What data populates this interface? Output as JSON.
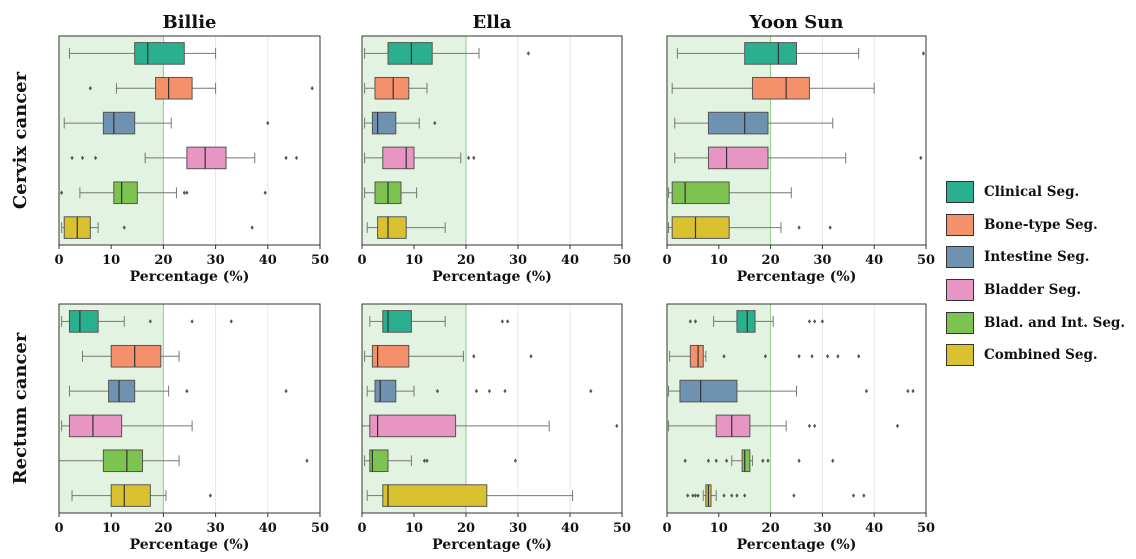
{
  "chart_data": {
    "type": "box",
    "rows": [
      "Cervix cancer",
      "Rectum cancer"
    ],
    "columns": [
      "Billie",
      "Ella",
      "Yoon Sun"
    ],
    "xlabel": "Percentage (%)",
    "xlim": [
      0,
      50
    ],
    "xticks": [
      0,
      10,
      20,
      30,
      40,
      50
    ],
    "threshold_band": [
      0,
      20
    ],
    "categories": [
      "Clinical Seg.",
      "Bone-type Seg.",
      "Intestine Seg.",
      "Bladder Seg.",
      "Blad. and Int. Seg.",
      "Combined Seg."
    ],
    "colors": [
      "#2bb08f",
      "#f4916a",
      "#6f92b0",
      "#e895c3",
      "#7cc44f",
      "#d9c130"
    ],
    "panels": [
      {
        "row": 0,
        "col": 0,
        "boxes": [
          {
            "whislo": 2,
            "q1": 14.5,
            "med": 17,
            "q3": 24,
            "whishi": 30,
            "fliers": []
          },
          {
            "whislo": 11,
            "q1": 18.5,
            "med": 21,
            "q3": 25.5,
            "whishi": 30,
            "fliers": [
              6,
              48.5
            ]
          },
          {
            "whislo": 1,
            "q1": 8.5,
            "med": 10.5,
            "q3": 14.5,
            "whishi": 21.5,
            "fliers": [
              40
            ]
          },
          {
            "whislo": 16.5,
            "q1": 24.5,
            "med": 28,
            "q3": 32,
            "whishi": 37.5,
            "fliers": [
              2.5,
              4.5,
              7,
              43.5,
              45.5
            ]
          },
          {
            "whislo": 4,
            "q1": 10.5,
            "med": 12,
            "q3": 15,
            "whishi": 22.5,
            "fliers": [
              0.5,
              24,
              24.5,
              39.5
            ]
          },
          {
            "whislo": 0.5,
            "q1": 1,
            "med": 3.5,
            "q3": 6,
            "whishi": 7.5,
            "fliers": [
              12.5,
              37
            ]
          }
        ]
      },
      {
        "row": 0,
        "col": 1,
        "boxes": [
          {
            "whislo": 0.5,
            "q1": 5,
            "med": 9.5,
            "q3": 13.5,
            "whishi": 22.5,
            "fliers": [
              32
            ]
          },
          {
            "whislo": 0.5,
            "q1": 2.5,
            "med": 6,
            "q3": 9,
            "whishi": 12.5,
            "fliers": []
          },
          {
            "whislo": 0.5,
            "q1": 2,
            "med": 3,
            "q3": 6.5,
            "whishi": 11,
            "fliers": [
              14
            ]
          },
          {
            "whislo": 0.5,
            "q1": 4,
            "med": 8.5,
            "q3": 10,
            "whishi": 19,
            "fliers": [
              20.5,
              21.5
            ]
          },
          {
            "whislo": 0.5,
            "q1": 2.5,
            "med": 5,
            "q3": 7.5,
            "whishi": 10.5,
            "fliers": []
          },
          {
            "whislo": 1,
            "q1": 3,
            "med": 5,
            "q3": 8.5,
            "whishi": 16,
            "fliers": []
          }
        ]
      },
      {
        "row": 0,
        "col": 2,
        "boxes": [
          {
            "whislo": 2,
            "q1": 15,
            "med": 21.5,
            "q3": 25,
            "whishi": 37,
            "fliers": [
              49.5
            ]
          },
          {
            "whislo": 1,
            "q1": 16.5,
            "med": 23,
            "q3": 27.5,
            "whishi": 40,
            "fliers": []
          },
          {
            "whislo": 1.5,
            "q1": 8,
            "med": 15,
            "q3": 19.5,
            "whishi": 32,
            "fliers": []
          },
          {
            "whislo": 1.5,
            "q1": 8,
            "med": 11.5,
            "q3": 19.5,
            "whishi": 34.5,
            "fliers": [
              49
            ]
          },
          {
            "whislo": 0.3,
            "q1": 1,
            "med": 3.5,
            "q3": 12,
            "whishi": 24,
            "fliers": []
          },
          {
            "whislo": 0.3,
            "q1": 1,
            "med": 5.5,
            "q3": 12,
            "whishi": 22,
            "fliers": [
              25.5,
              31.5
            ]
          }
        ]
      },
      {
        "row": 1,
        "col": 0,
        "boxes": [
          {
            "whislo": 0.5,
            "q1": 2,
            "med": 4,
            "q3": 7.5,
            "whishi": 12.5,
            "fliers": [
              17.5,
              25.5,
              33
            ]
          },
          {
            "whislo": 4.5,
            "q1": 10,
            "med": 14.5,
            "q3": 19.5,
            "whishi": 23,
            "fliers": []
          },
          {
            "whislo": 2,
            "q1": 9.5,
            "med": 11.5,
            "q3": 14.5,
            "whishi": 21,
            "fliers": [
              24.5,
              43.5
            ]
          },
          {
            "whislo": 0.5,
            "q1": 2,
            "med": 6.5,
            "q3": 12,
            "whishi": 25.5,
            "fliers": []
          },
          {
            "whislo": 0,
            "q1": 8.5,
            "med": 13,
            "q3": 16,
            "whishi": 23,
            "fliers": [
              47.5
            ]
          },
          {
            "whislo": 2.5,
            "q1": 10,
            "med": 12.5,
            "q3": 17.5,
            "whishi": 20.5,
            "fliers": [
              29
            ]
          }
        ]
      },
      {
        "row": 1,
        "col": 1,
        "boxes": [
          {
            "whislo": 1.5,
            "q1": 4,
            "med": 5,
            "q3": 9.5,
            "whishi": 16,
            "fliers": [
              27,
              28
            ]
          },
          {
            "whislo": 0.5,
            "q1": 2,
            "med": 3,
            "q3": 9,
            "whishi": 19.5,
            "fliers": [
              21.5,
              32.5
            ]
          },
          {
            "whislo": 1,
            "q1": 2.5,
            "med": 3.5,
            "q3": 6.5,
            "whishi": 10,
            "fliers": [
              14.5,
              22,
              24.5,
              27.5,
              44
            ]
          },
          {
            "whislo": 0,
            "q1": 1.5,
            "med": 3,
            "q3": 18,
            "whishi": 36,
            "fliers": [
              49
            ]
          },
          {
            "whislo": 0.5,
            "q1": 1.5,
            "med": 2,
            "q3": 5,
            "whishi": 9.5,
            "fliers": [
              12,
              12.5,
              29.5
            ]
          },
          {
            "whislo": 1,
            "q1": 4,
            "med": 5,
            "q3": 24,
            "whishi": 40.5,
            "fliers": []
          }
        ]
      },
      {
        "row": 1,
        "col": 2,
        "boxes": [
          {
            "whislo": 9,
            "q1": 13.5,
            "med": 15.5,
            "q3": 17,
            "whishi": 20.5,
            "fliers": [
              4.5,
              5.5,
              27.5,
              28.5,
              30
            ]
          },
          {
            "whislo": 0.5,
            "q1": 4.5,
            "med": 6,
            "q3": 7,
            "whishi": 7.5,
            "fliers": [
              11,
              19,
              25.5,
              28,
              31,
              33,
              37
            ]
          },
          {
            "whislo": 0.3,
            "q1": 2.5,
            "med": 6.5,
            "q3": 13.5,
            "whishi": 25,
            "fliers": [
              38.5,
              46.5,
              47.5
            ]
          },
          {
            "whislo": 0.3,
            "q1": 9.5,
            "med": 12.5,
            "q3": 16,
            "whishi": 23,
            "fliers": [
              27.5,
              28.5,
              44.5
            ]
          },
          {
            "whislo": 12.5,
            "q1": 14.5,
            "med": 15,
            "q3": 16,
            "whishi": 16.5,
            "fliers": [
              3.5,
              8,
              9.5,
              11.5,
              18.5,
              19.5,
              25.5,
              32
            ]
          },
          {
            "whislo": 7,
            "q1": 7.5,
            "med": 8,
            "q3": 8.5,
            "whishi": 9.5,
            "fliers": [
              4,
              5,
              5.5,
              6,
              11,
              12.5,
              13.5,
              15,
              24.5,
              36,
              38
            ]
          }
        ]
      }
    ]
  }
}
